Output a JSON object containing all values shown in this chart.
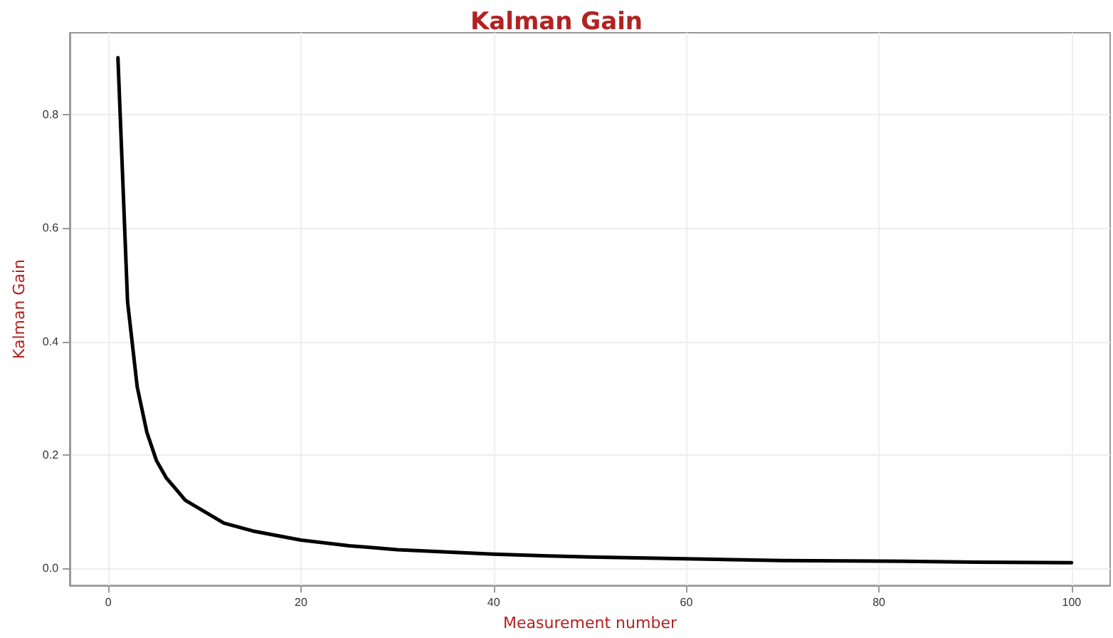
{
  "chart_data": {
    "type": "line",
    "title": "Kalman Gain",
    "xlabel": "Measurement number",
    "ylabel": "Kalman Gain",
    "x": [
      1,
      2,
      3,
      4,
      5,
      6,
      7,
      8,
      10,
      12,
      15,
      20,
      25,
      30,
      40,
      50,
      60,
      70,
      80,
      90,
      100
    ],
    "series": [
      {
        "color": "#000000",
        "values": [
          0.9,
          0.47,
          0.32,
          0.24,
          0.19,
          0.16,
          0.14,
          0.12,
          0.1,
          0.08,
          0.066,
          0.05,
          0.04,
          0.033,
          0.025,
          0.02,
          0.017,
          0.014,
          0.013,
          0.011,
          0.01
        ]
      }
    ],
    "xlim": [
      -4,
      104
    ],
    "ylim": [
      -0.03,
      0.944
    ],
    "xticks": [
      0,
      20,
      40,
      60,
      80,
      100
    ],
    "yticks": [
      {
        "value": 0,
        "label": "0.0"
      },
      {
        "value": 0.2,
        "label": "0.2"
      },
      {
        "value": 0.4,
        "label": "0.4"
      },
      {
        "value": 0.6,
        "label": "0.6"
      },
      {
        "value": 0.8,
        "label": "0.8"
      }
    ],
    "grid": true,
    "marker": "none",
    "line_style": "solid"
  }
}
